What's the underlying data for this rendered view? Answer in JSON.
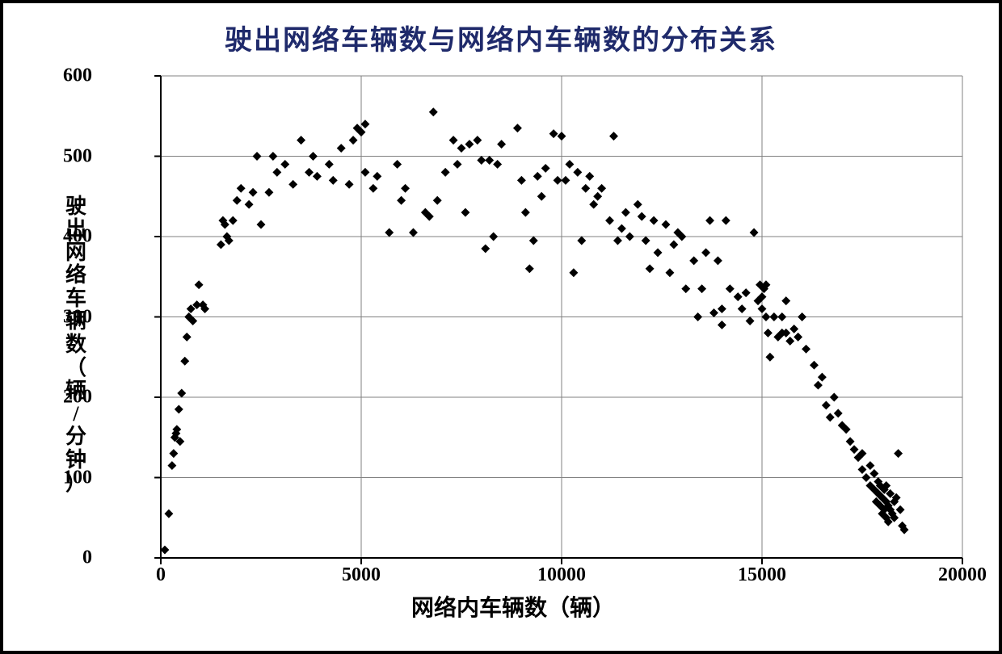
{
  "chart": {
    "type": "scatter",
    "title": "驶出网络车辆数与网络内车辆数的分布关系",
    "title_color": "#1f2a6b",
    "title_fontsize": 34,
    "x_label": "网络内车辆数（辆）",
    "y_label": "驶出网络车辆数（辆/分钟）",
    "axis_label_fontsize": 28,
    "tick_fontsize": 24,
    "background_color": "#ffffff",
    "frame_border_color": "#000000",
    "gridline_color": "#808080",
    "gridline_width": 1,
    "axis_color": "#000000",
    "xlim": [
      0,
      20000
    ],
    "ylim": [
      0,
      600
    ],
    "x_ticks": [
      0,
      5000,
      10000,
      15000,
      20000
    ],
    "y_ticks": [
      0,
      100,
      200,
      300,
      400,
      500,
      600
    ],
    "marker": {
      "shape": "diamond",
      "size": 11,
      "fill": "#000000",
      "stroke": "none"
    },
    "tick_mark_len": 8,
    "points": [
      [
        100,
        10
      ],
      [
        200,
        55
      ],
      [
        280,
        115
      ],
      [
        320,
        130
      ],
      [
        350,
        150
      ],
      [
        380,
        155
      ],
      [
        400,
        160
      ],
      [
        450,
        185
      ],
      [
        480,
        145
      ],
      [
        520,
        205
      ],
      [
        600,
        245
      ],
      [
        650,
        275
      ],
      [
        700,
        300
      ],
      [
        750,
        310
      ],
      [
        800,
        295
      ],
      [
        900,
        315
      ],
      [
        950,
        340
      ],
      [
        1050,
        315
      ],
      [
        1100,
        310
      ],
      [
        1500,
        390
      ],
      [
        1550,
        420
      ],
      [
        1600,
        415
      ],
      [
        1650,
        400
      ],
      [
        1700,
        395
      ],
      [
        1800,
        420
      ],
      [
        1900,
        445
      ],
      [
        2000,
        460
      ],
      [
        2200,
        440
      ],
      [
        2300,
        455
      ],
      [
        2400,
        500
      ],
      [
        2500,
        415
      ],
      [
        2700,
        455
      ],
      [
        2800,
        500
      ],
      [
        2900,
        480
      ],
      [
        3100,
        490
      ],
      [
        3300,
        465
      ],
      [
        3500,
        520
      ],
      [
        3700,
        480
      ],
      [
        3800,
        500
      ],
      [
        3900,
        475
      ],
      [
        4200,
        490
      ],
      [
        4300,
        470
      ],
      [
        4500,
        510
      ],
      [
        4700,
        465
      ],
      [
        4800,
        520
      ],
      [
        4900,
        535
      ],
      [
        5000,
        530
      ],
      [
        5100,
        480
      ],
      [
        5100,
        540
      ],
      [
        5300,
        460
      ],
      [
        5400,
        475
      ],
      [
        5700,
        405
      ],
      [
        5900,
        490
      ],
      [
        6000,
        445
      ],
      [
        6100,
        460
      ],
      [
        6300,
        405
      ],
      [
        6600,
        430
      ],
      [
        6700,
        425
      ],
      [
        6800,
        555
      ],
      [
        6900,
        445
      ],
      [
        7100,
        480
      ],
      [
        7300,
        520
      ],
      [
        7400,
        490
      ],
      [
        7500,
        510
      ],
      [
        7600,
        430
      ],
      [
        7700,
        515
      ],
      [
        7900,
        520
      ],
      [
        8000,
        495
      ],
      [
        8100,
        385
      ],
      [
        8200,
        495
      ],
      [
        8300,
        400
      ],
      [
        8400,
        490
      ],
      [
        8500,
        515
      ],
      [
        8900,
        535
      ],
      [
        9000,
        470
      ],
      [
        9100,
        430
      ],
      [
        9200,
        360
      ],
      [
        9300,
        395
      ],
      [
        9400,
        475
      ],
      [
        9500,
        450
      ],
      [
        9600,
        485
      ],
      [
        9800,
        528
      ],
      [
        9900,
        470
      ],
      [
        10000,
        525
      ],
      [
        10100,
        470
      ],
      [
        10200,
        490
      ],
      [
        10300,
        355
      ],
      [
        10400,
        480
      ],
      [
        10500,
        395
      ],
      [
        10600,
        460
      ],
      [
        10700,
        475
      ],
      [
        10800,
        440
      ],
      [
        10900,
        450
      ],
      [
        11000,
        460
      ],
      [
        11200,
        420
      ],
      [
        11300,
        525
      ],
      [
        11400,
        395
      ],
      [
        11500,
        410
      ],
      [
        11600,
        430
      ],
      [
        11700,
        400
      ],
      [
        11900,
        440
      ],
      [
        12000,
        425
      ],
      [
        12100,
        395
      ],
      [
        12200,
        360
      ],
      [
        12300,
        420
      ],
      [
        12400,
        380
      ],
      [
        12600,
        415
      ],
      [
        12700,
        355
      ],
      [
        12800,
        390
      ],
      [
        12900,
        405
      ],
      [
        13000,
        400
      ],
      [
        13100,
        335
      ],
      [
        13300,
        370
      ],
      [
        13400,
        300
      ],
      [
        13500,
        335
      ],
      [
        13600,
        380
      ],
      [
        13700,
        420
      ],
      [
        13800,
        305
      ],
      [
        13900,
        370
      ],
      [
        14000,
        310
      ],
      [
        14000,
        290
      ],
      [
        14100,
        420
      ],
      [
        14200,
        335
      ],
      [
        14400,
        325
      ],
      [
        14500,
        310
      ],
      [
        14600,
        330
      ],
      [
        14700,
        295
      ],
      [
        14800,
        405
      ],
      [
        14900,
        320
      ],
      [
        14950,
        340
      ],
      [
        15000,
        310
      ],
      [
        15000,
        325
      ],
      [
        15050,
        335
      ],
      [
        15100,
        300
      ],
      [
        15100,
        340
      ],
      [
        15150,
        280
      ],
      [
        15200,
        250
      ],
      [
        15300,
        300
      ],
      [
        15400,
        275
      ],
      [
        15500,
        280
      ],
      [
        15500,
        300
      ],
      [
        15600,
        320
      ],
      [
        15600,
        280
      ],
      [
        15700,
        270
      ],
      [
        15800,
        285
      ],
      [
        15900,
        275
      ],
      [
        16000,
        300
      ],
      [
        16100,
        260
      ],
      [
        16300,
        240
      ],
      [
        16400,
        215
      ],
      [
        16500,
        225
      ],
      [
        16600,
        190
      ],
      [
        16700,
        175
      ],
      [
        16800,
        200
      ],
      [
        16900,
        180
      ],
      [
        17000,
        165
      ],
      [
        17100,
        160
      ],
      [
        17200,
        145
      ],
      [
        17300,
        135
      ],
      [
        17400,
        125
      ],
      [
        17500,
        110
      ],
      [
        17500,
        130
      ],
      [
        17600,
        100
      ],
      [
        17700,
        115
      ],
      [
        17700,
        90
      ],
      [
        17800,
        85
      ],
      [
        17800,
        105
      ],
      [
        17850,
        70
      ],
      [
        17900,
        95
      ],
      [
        17900,
        80
      ],
      [
        17950,
        65
      ],
      [
        17950,
        90
      ],
      [
        18000,
        75
      ],
      [
        18000,
        55
      ],
      [
        18050,
        85
      ],
      [
        18050,
        60
      ],
      [
        18100,
        70
      ],
      [
        18100,
        50
      ],
      [
        18100,
        90
      ],
      [
        18150,
        65
      ],
      [
        18150,
        45
      ],
      [
        18200,
        80
      ],
      [
        18200,
        60
      ],
      [
        18250,
        55
      ],
      [
        18300,
        70
      ],
      [
        18300,
        50
      ],
      [
        18350,
        75
      ],
      [
        18400,
        130
      ],
      [
        18450,
        60
      ],
      [
        18500,
        40
      ],
      [
        18550,
        35
      ]
    ]
  }
}
